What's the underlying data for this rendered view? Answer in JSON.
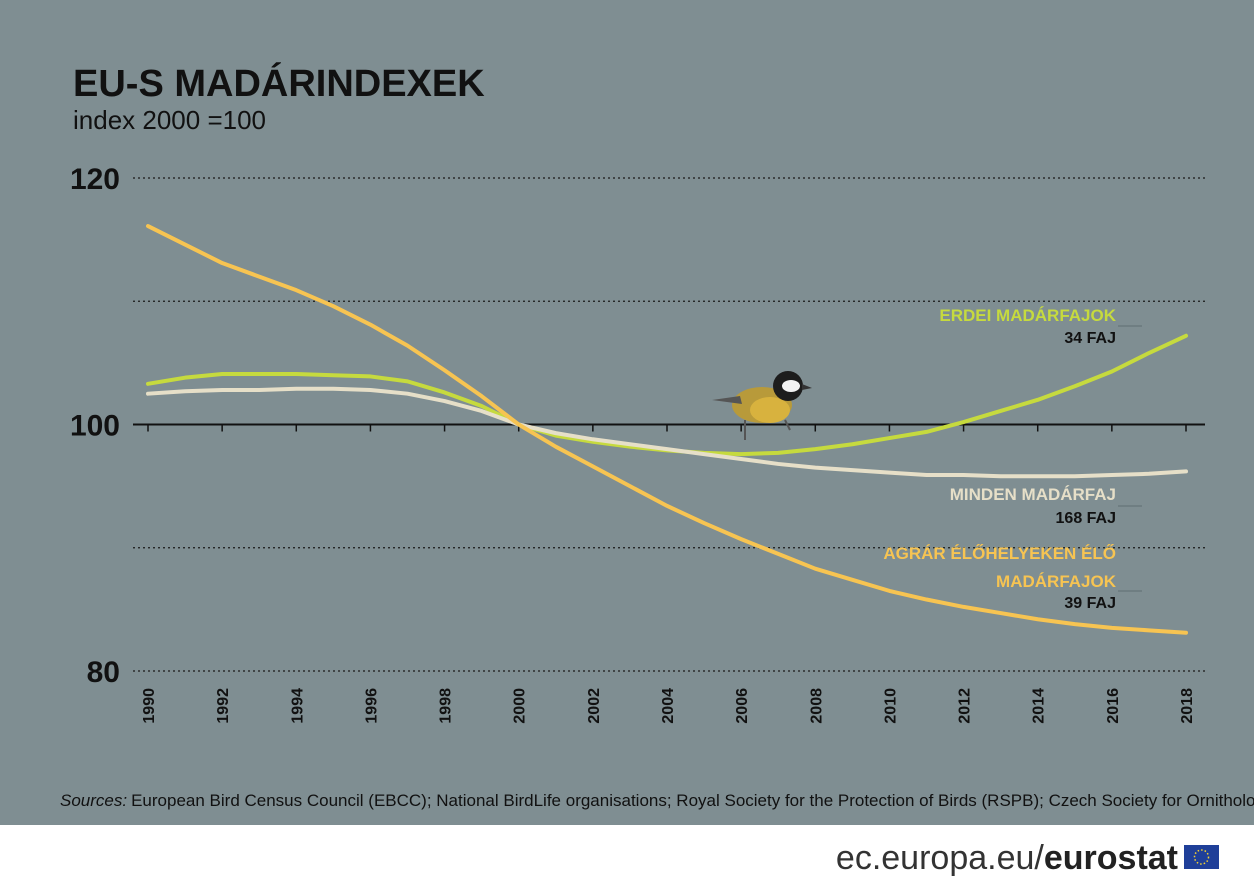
{
  "chart_data": {
    "type": "line",
    "title": "EU-S MADÁRINDEXEK",
    "subtitle": "index 2000 =100",
    "x": [
      1990,
      1991,
      1992,
      1993,
      1994,
      1995,
      1996,
      1997,
      1998,
      1999,
      2000,
      2001,
      2002,
      2003,
      2004,
      2005,
      2006,
      2007,
      2008,
      2009,
      2010,
      2011,
      2012,
      2013,
      2014,
      2015,
      2016,
      2017,
      2018
    ],
    "xlim": [
      1990,
      2018
    ],
    "xticks": [
      1990,
      1992,
      1994,
      1996,
      1998,
      2000,
      2002,
      2004,
      2006,
      2008,
      2010,
      2012,
      2014,
      2016,
      2018
    ],
    "ylim": [
      80,
      120
    ],
    "yticks": [
      80,
      100,
      120
    ],
    "y_minor_grid": [
      90,
      110
    ],
    "baseline": 100,
    "grid": true,
    "series": [
      {
        "name_lines": [
          "ERDEI MADÁRFAJOK"
        ],
        "count_label": "34 FAJ",
        "color": "#c6da3e",
        "values": [
          103.3,
          103.8,
          104.1,
          104.1,
          104.1,
          104.0,
          103.9,
          103.5,
          102.6,
          101.5,
          100,
          99.1,
          98.6,
          98.2,
          97.9,
          97.7,
          97.6,
          97.7,
          98.0,
          98.4,
          98.9,
          99.4,
          100.2,
          101.1,
          102.0,
          103.1,
          104.3,
          105.8,
          107.2
        ]
      },
      {
        "name_lines": [
          "MINDEN MADÁRFAJ"
        ],
        "count_label": "168 FAJ",
        "color": "#e6dfc8",
        "values": [
          102.5,
          102.7,
          102.8,
          102.8,
          102.9,
          102.9,
          102.8,
          102.5,
          101.9,
          101.1,
          100,
          99.3,
          98.8,
          98.4,
          98.0,
          97.6,
          97.2,
          96.8,
          96.5,
          96.3,
          96.1,
          95.9,
          95.9,
          95.8,
          95.8,
          95.8,
          95.9,
          96.0,
          96.2
        ]
      },
      {
        "name_lines": [
          "AGRÁR ÉLŐHELYEKEN ÉLŐ",
          "MADÁRFAJOK"
        ],
        "count_label": "39 FAJ",
        "color": "#f7c452",
        "values": [
          116.1,
          114.6,
          113.1,
          112.0,
          110.9,
          109.6,
          108.1,
          106.4,
          104.4,
          102.3,
          100,
          98.2,
          96.6,
          95.0,
          93.4,
          92.0,
          90.7,
          89.5,
          88.3,
          87.4,
          86.5,
          85.8,
          85.2,
          84.7,
          84.2,
          83.8,
          83.5,
          83.3,
          83.1
        ]
      }
    ],
    "source_label": "Sources:",
    "source_text": "European Bird Census Council (EBCC); National BirdLife organisations; Royal Society for the Protection of Birds (RSPB); Czech Society for Ornithology (CSO)",
    "brand_url": "ec.europa.eu/",
    "brand_name": "eurostat"
  }
}
